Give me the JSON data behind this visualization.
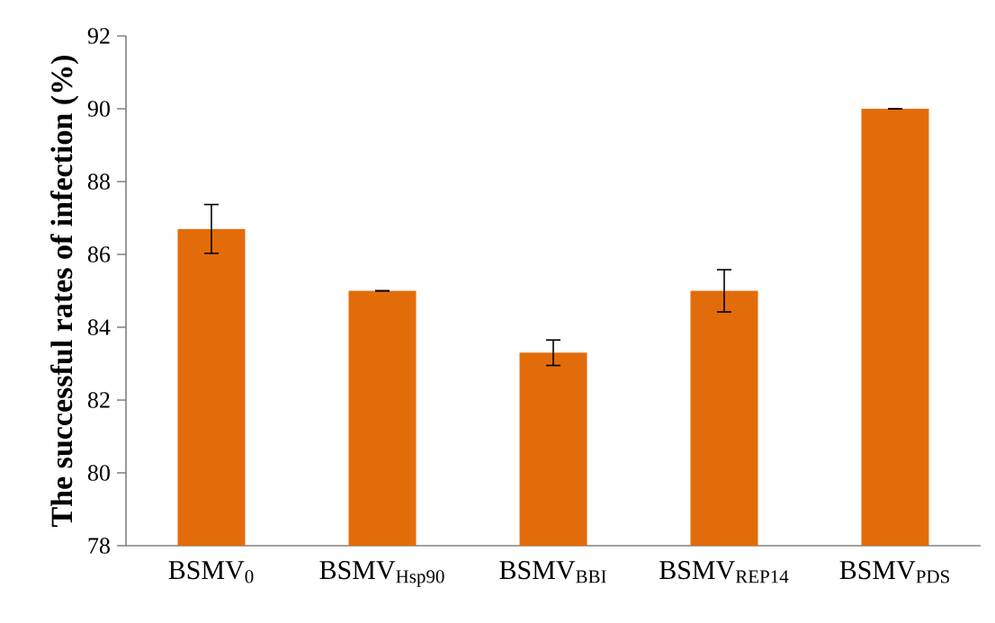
{
  "chart_data": {
    "type": "bar",
    "ylabel": "The successful rates of infection (%)",
    "categories": [
      "BSMV$_{0}$",
      "BSMV$_{Hsp90}$",
      "BSMV$_{BBI}$",
      "BSMV$_{REP14}$",
      "BSMV$_{PDS}$"
    ],
    "values": [
      86.7,
      85,
      83.3,
      85,
      90
    ],
    "errors": [
      0.67,
      0,
      0.35,
      0.58,
      0
    ],
    "color": "#e36c0a",
    "ylim": [
      78,
      92
    ],
    "yticks": [
      78,
      80,
      82,
      84,
      86,
      88,
      90,
      92
    ]
  }
}
